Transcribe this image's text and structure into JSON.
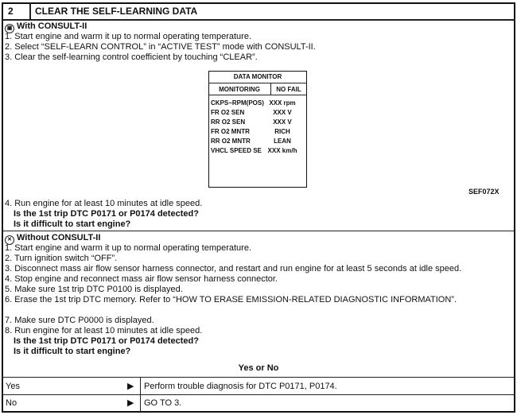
{
  "header": {
    "step": "2",
    "title": "CLEAR THE SELF-LEARNING DATA"
  },
  "with_consult": {
    "icon": "consult-device-icon",
    "title": "With CONSULT-II",
    "steps": [
      "1. Start engine and warm it up to normal operating temperature.",
      "2. Select “SELF-LEARN CONTROL” in “ACTIVE TEST” mode with CONSULT-II.",
      "3. Clear the self-learning control coefficient by touching “CLEAR”.",
      "4. Run engine for at least 10 minutes at idle speed."
    ],
    "questions": [
      "Is the 1st trip DTC P0171 or P0174 detected?",
      "Is it difficult to start engine?"
    ]
  },
  "data_monitor": {
    "title": "DATA MONITOR",
    "mode": "MONITORING",
    "status": "NO FAIL",
    "rows": [
      {
        "item": "CKPS~RPM(POS)",
        "value": "XXX rpm"
      },
      {
        "item": "FR O2 SEN",
        "value": "XXX V"
      },
      {
        "item": "RR O2 SEN",
        "value": "XXX V"
      },
      {
        "item": "FR O2 MNTR",
        "value": "RICH"
      },
      {
        "item": "RR O2 MNTR",
        "value": "LEAN"
      },
      {
        "item": "VHCL SPEED SE",
        "value": "XXX km/h"
      }
    ],
    "figure_code": "SEF072X"
  },
  "without_consult": {
    "icon": "no-consult-icon",
    "title": "Without CONSULT-II",
    "steps": [
      "1. Start engine and warm it up to normal operating temperature.",
      "2. Turn ignition switch “OFF”.",
      "3. Disconnect mass air flow sensor harness connector, and restart and run engine for at least 5 seconds at idle speed.",
      "4. Stop engine and reconnect mass air flow sensor harness connector.",
      "5. Make sure 1st trip DTC P0100 is displayed.",
      "6. Erase the 1st trip DTC memory. Refer to “HOW TO ERASE EMISSION-RELATED DIAGNOSTIC INFORMATION”.",
      "7. Make sure DTC P0000 is displayed.",
      "8. Run engine for at least 10 minutes at idle speed."
    ],
    "questions": [
      "Is the 1st trip DTC P0171 or P0174 detected?",
      "Is it difficult to start engine?"
    ]
  },
  "result": {
    "prompt": "Yes or No",
    "rows": [
      {
        "answer": "Yes",
        "action": "Perform trouble diagnosis for DTC P0171, P0174."
      },
      {
        "answer": "No",
        "action": "GO TO 3."
      }
    ]
  }
}
